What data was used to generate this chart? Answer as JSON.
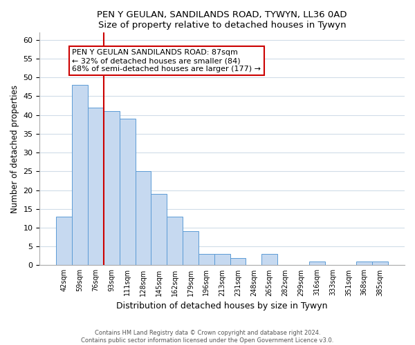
{
  "title1": "PEN Y GEULAN, SANDILANDS ROAD, TYWYN, LL36 0AD",
  "title2": "Size of property relative to detached houses in Tywyn",
  "xlabel": "Distribution of detached houses by size in Tywyn",
  "ylabel": "Number of detached properties",
  "bar_labels": [
    "42sqm",
    "59sqm",
    "76sqm",
    "93sqm",
    "111sqm",
    "128sqm",
    "145sqm",
    "162sqm",
    "179sqm",
    "196sqm",
    "213sqm",
    "231sqm",
    "248sqm",
    "265sqm",
    "282sqm",
    "299sqm",
    "316sqm",
    "333sqm",
    "351sqm",
    "368sqm",
    "385sqm"
  ],
  "bar_values": [
    13,
    48,
    42,
    41,
    39,
    25,
    19,
    13,
    9,
    3,
    3,
    2,
    0,
    3,
    0,
    0,
    1,
    0,
    0,
    1,
    1
  ],
  "bar_color": "#c6d9f0",
  "bar_edge_color": "#5b9bd5",
  "vline_x_idx": 2.5,
  "vline_color": "#cc0000",
  "ylim": [
    0,
    62
  ],
  "yticks": [
    0,
    5,
    10,
    15,
    20,
    25,
    30,
    35,
    40,
    45,
    50,
    55,
    60
  ],
  "annotation_title": "PEN Y GEULAN SANDILANDS ROAD: 87sqm",
  "annotation_line1": "← 32% of detached houses are smaller (84)",
  "annotation_line2": "68% of semi-detached houses are larger (177) →",
  "annotation_box_color": "#ffffff",
  "annotation_box_edge": "#cc0000",
  "footer1": "Contains HM Land Registry data © Crown copyright and database right 2024.",
  "footer2": "Contains public sector information licensed under the Open Government Licence v3.0."
}
